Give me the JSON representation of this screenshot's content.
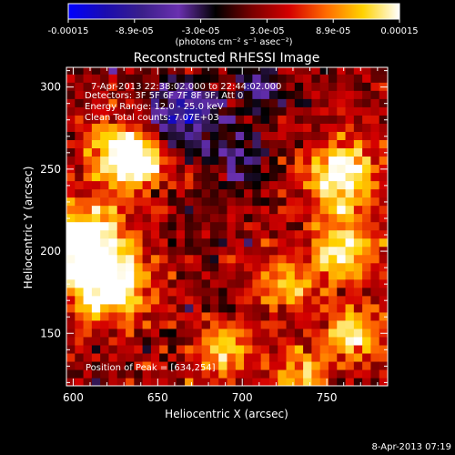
{
  "chart_data": {
    "type": "heatmap",
    "title": "Reconstructed RHESSI Image",
    "xlabel": "Heliocentric X (arcsec)",
    "ylabel": "Heliocentric Y (arcsec)",
    "xlim": [
      596,
      786
    ],
    "ylim": [
      118,
      312
    ],
    "xticks": [
      600,
      650,
      700,
      750
    ],
    "yticks": [
      150,
      200,
      250,
      300
    ],
    "colorbar": {
      "tick_labels": [
        "-0.00015",
        "-8.9e-05",
        "-3.0e-05",
        "3.0e-05",
        "8.9e-05",
        "0.00015"
      ],
      "range": [
        -0.00015,
        0.00015
      ],
      "unit_label": "(photons cm⁻² s⁻¹ asec⁻²)",
      "colors": [
        "#0000ff",
        "#1a0cb0",
        "#3a1f8a",
        "#6a30b0",
        "#000000",
        "#7a0000",
        "#d40000",
        "#ff6a00",
        "#ffd200",
        "#ffffff"
      ]
    },
    "annotations": [
      "7-Apr-2013 22:38:02.000 to 22:44:02.000",
      "Detectors: 3F 5F 6F 7F 8F 9F, Att 0",
      "Energy Range: 12.0 - 25.0 keV",
      "Clean     Total counts: 7.07E+03"
    ],
    "peak_label": "Position of Peak = [634,254]",
    "peak_position": [
      634,
      254
    ],
    "bright_regions": [
      {
        "x": 604,
        "y": 205,
        "sigma": 18,
        "amp": 0.00015
      },
      {
        "x": 622,
        "y": 178,
        "sigma": 16,
        "amp": 0.00013
      },
      {
        "x": 626,
        "y": 262,
        "sigma": 14,
        "amp": 0.00012
      },
      {
        "x": 640,
        "y": 254,
        "sigma": 10,
        "amp": 0.00013
      },
      {
        "x": 690,
        "y": 140,
        "sigma": 12,
        "amp": 0.0001
      },
      {
        "x": 725,
        "y": 180,
        "sigma": 12,
        "amp": 9e-05
      },
      {
        "x": 760,
        "y": 245,
        "sigma": 15,
        "amp": 0.00014
      },
      {
        "x": 760,
        "y": 200,
        "sigma": 14,
        "amp": 0.00011
      },
      {
        "x": 765,
        "y": 150,
        "sigma": 12,
        "amp": 0.00012
      },
      {
        "x": 735,
        "y": 125,
        "sigma": 10,
        "amp": 0.0001
      }
    ],
    "dim_regions": [
      {
        "x": 665,
        "y": 285,
        "sigma": 14,
        "amp": -0.00012
      },
      {
        "x": 700,
        "y": 255,
        "sigma": 12,
        "amp": -7e-05
      },
      {
        "x": 710,
        "y": 300,
        "sigma": 10,
        "amp": -8e-05
      }
    ]
  },
  "footer_timestamp": "8-Apr-2013 07:19"
}
